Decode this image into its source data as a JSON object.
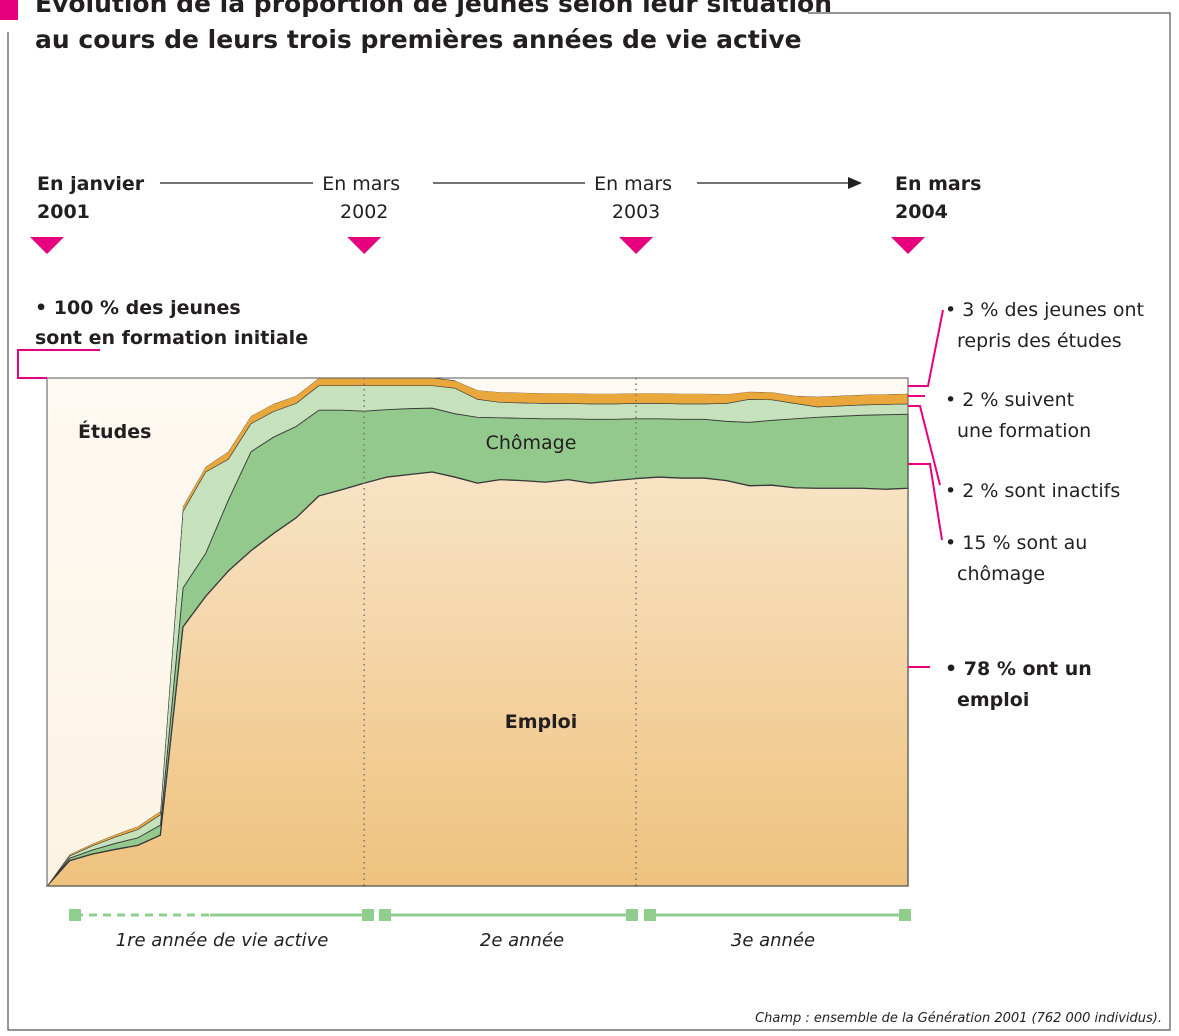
{
  "chart_data": {
    "type": "stacked-area",
    "title": [
      "Évolution de la proportion de jeunes selon leur situation",
      "au cours de leurs trois premières années de vie active"
    ],
    "categories": [
      "En janvier 2001",
      null,
      null,
      null,
      null,
      null,
      null,
      null,
      null,
      null,
      null,
      null,
      null,
      null,
      "En mars 2002",
      null,
      null,
      null,
      null,
      null,
      null,
      null,
      null,
      null,
      null,
      null,
      "En mars 2003",
      null,
      null,
      null,
      null,
      null,
      null,
      null,
      null,
      null,
      null,
      null,
      "En mars 2004"
    ],
    "ylim": [
      0,
      100
    ],
    "series": [
      {
        "name": "Emploi",
        "color": "#efc27e",
        "values": [
          0,
          5,
          6.3,
          7.2,
          8,
          10,
          51,
          57,
          62,
          66,
          69.4,
          72.5,
          76.8,
          78,
          79.3,
          80.5,
          81,
          81.5,
          80.5,
          79.3,
          80,
          79.8,
          79.5,
          80,
          79.3,
          79.8,
          80.2,
          80.5,
          80.3,
          80.3,
          79.8,
          78.8,
          78.9,
          78.4,
          78.3,
          78.3,
          78.3,
          78.1,
          78.3
        ]
      },
      {
        "name": "Chômage",
        "color": "#93c98c",
        "values": [
          0,
          0.5,
          0.8,
          1.2,
          1.5,
          2,
          7.7,
          8.5,
          14,
          19.5,
          19,
          18,
          16.9,
          15.7,
          14.2,
          13.3,
          13,
          12.6,
          12.5,
          13,
          12.2,
          12.3,
          12.5,
          12,
          12.6,
          12.1,
          11.8,
          11.5,
          11.6,
          11.6,
          11.7,
          12.5,
          12.8,
          13.6,
          14,
          14.2,
          14.4,
          14.7,
          14.6
        ]
      },
      {
        "color": "#c6e2bd",
        "values": [
          0,
          0.4,
          0.8,
          1.2,
          1.6,
          2,
          15,
          16,
          8,
          5.5,
          5,
          4.5,
          4.8,
          4.8,
          5,
          4.7,
          4.5,
          4.4,
          5,
          3.5,
          3,
          3,
          3,
          3,
          3,
          3,
          3,
          3,
          3,
          3,
          3.5,
          4.5,
          4,
          3,
          2,
          2,
          2,
          2,
          2
        ]
      },
      {
        "color": "#e9a73c",
        "values": [
          0,
          0.3,
          0.4,
          0.5,
          0.6,
          0.7,
          1,
          1,
          1.5,
          1.5,
          1.5,
          1.5,
          1.5,
          1.5,
          1.5,
          1.5,
          1.5,
          1.5,
          1.5,
          1.8,
          2,
          2,
          2,
          2,
          2,
          2,
          2,
          2,
          2,
          2,
          1.8,
          1.5,
          1.5,
          1.5,
          2,
          2,
          2,
          2,
          2
        ]
      },
      {
        "name": "Études",
        "color": "#fcf3e3",
        "values": [
          100,
          93.8,
          91.7,
          89.9,
          88.3,
          85.3,
          25.3,
          17.5,
          14.5,
          7.5,
          5.1,
          3.5,
          0,
          0,
          0,
          0,
          0,
          0,
          0,
          2.4,
          2.8,
          2.9,
          3,
          3,
          3.1,
          3.1,
          3,
          3,
          3.1,
          3.1,
          3.2,
          2.7,
          2.8,
          3.5,
          3.7,
          3.5,
          3.3,
          3.2,
          3.1
        ]
      }
    ],
    "left_annotation": {
      "lines": [
        "• 100 % des jeunes",
        "sont en formation initiale"
      ],
      "bold": true
    },
    "right_annotations": [
      {
        "lines": [
          "• 3 % des jeunes ont",
          "repris des études"
        ],
        "bold": false
      },
      {
        "lines": [
          "• 2 % suivent",
          "une formation"
        ],
        "bold": false
      },
      {
        "lines": [
          "• 2 % sont inactifs"
        ],
        "bold": false
      },
      {
        "lines": [
          "• 15 % sont au",
          "chômage"
        ],
        "bold": false
      },
      {
        "lines": [
          "• 78 % ont un",
          "emploi"
        ],
        "bold": true
      }
    ],
    "periods": [
      "1re année de vie active",
      "2e année",
      "3e année"
    ],
    "source": "Champ : ensemble de la Génération 2001 (762 000 individus)."
  }
}
